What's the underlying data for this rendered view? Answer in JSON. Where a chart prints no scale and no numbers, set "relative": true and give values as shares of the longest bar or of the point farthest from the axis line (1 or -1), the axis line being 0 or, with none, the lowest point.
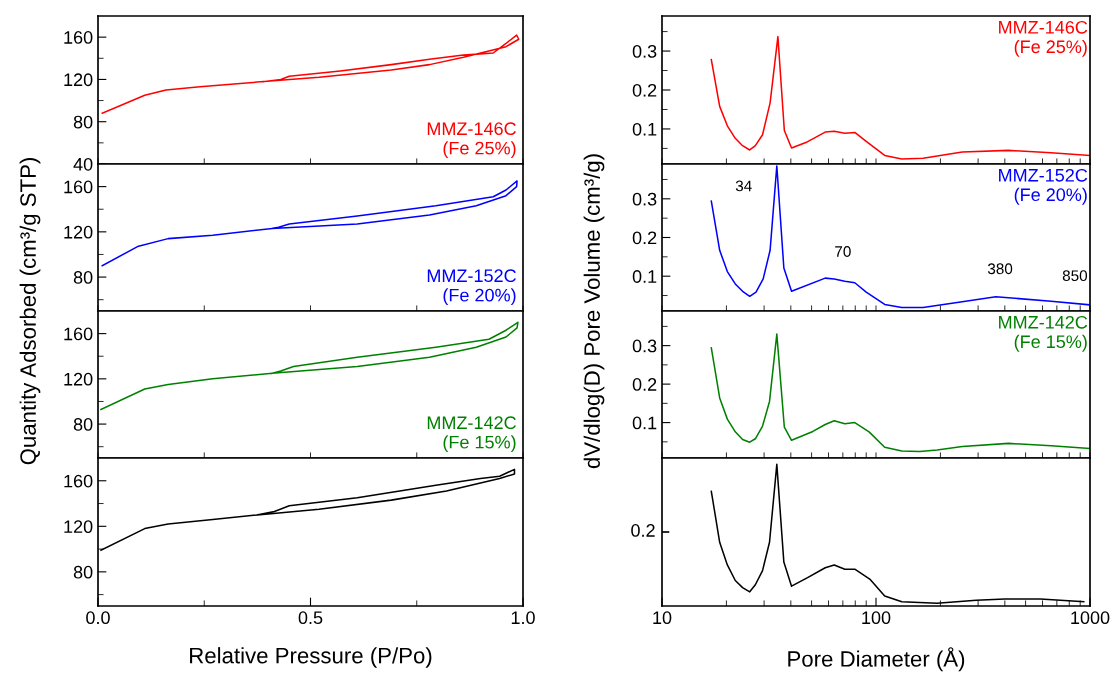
{
  "chart_data": [
    {
      "type": "line",
      "ylabel": "Quantity Adsorbed (cm³/g STP)",
      "xlim": [
        0,
        1
      ],
      "xticks": [
        {
          "value": 0,
          "label": null
        },
        {
          "value": 0.25,
          "label": null
        },
        {
          "value": 0.5,
          "label": null
        },
        {
          "value": 0.75,
          "label": null
        },
        {
          "value": 1,
          "label": null
        }
      ],
      "ylim": [
        40,
        180
      ],
      "yticks": [
        40,
        {
          "value": 60,
          "label": null
        },
        80,
        {
          "value": 100,
          "label": null
        },
        120,
        {
          "value": 140,
          "label": null
        },
        160
      ],
      "tick_labels": "y",
      "series": [
        {
          "name": "MMZ-146C\n(Fe 25%)",
          "color": "#ff0000",
          "x": [
            0.01,
            0.11,
            0.16,
            0.24,
            0.39,
            0.52,
            0.69,
            0.78,
            0.86,
            0.96,
            0.99,
            0.985,
            0.96,
            0.93,
            0.86,
            0.78,
            0.69,
            0.57,
            0.45,
            0.43,
            0.39
          ],
          "values": [
            88,
            105,
            110,
            113,
            118,
            122,
            129,
            134,
            141,
            151,
            158,
            162,
            154,
            145,
            143,
            139,
            134,
            128,
            123,
            120,
            118
          ]
        }
      ]
    },
    {
      "type": "line",
      "ylabel": "dV/dlog(D) Pore Volume (cm³/g)",
      "log": "x",
      "xlim": [
        10,
        1000
      ],
      "xticks": [
        {
          "value": 10,
          "label": null
        },
        {
          "value": 100,
          "label": null
        },
        {
          "value": 1000,
          "label": null
        }
      ],
      "ylim": [
        0.01,
        0.39
      ],
      "yticks": [
        {
          "value": 0.05,
          "label": null
        },
        0.1,
        {
          "value": 0.15,
          "label": null
        },
        0.2,
        {
          "value": 0.25,
          "label": null
        },
        0.3,
        {
          "value": 0.35,
          "label": null
        }
      ],
      "tick_labels": "y",
      "series": [
        {
          "name": "MMZ-146C\n(Fe 25%)",
          "color": "#ff0000",
          "x": [
            17.0,
            18.6,
            20.2,
            22.0,
            23.8,
            25.7,
            27.3,
            29.5,
            32.0,
            34.8,
            37.3,
            40.3,
            47.0,
            57.9,
            63.8,
            71.5,
            79.6,
            90.0,
            109.8,
            132,
            166,
            253,
            416,
            658,
            993
          ],
          "values": [
            0.278,
            0.158,
            0.108,
            0.076,
            0.057,
            0.046,
            0.057,
            0.085,
            0.167,
            0.337,
            0.096,
            0.051,
            0.065,
            0.092,
            0.094,
            0.089,
            0.091,
            0.068,
            0.032,
            0.023,
            0.025,
            0.041,
            0.045,
            0.039,
            0.032
          ]
        }
      ]
    },
    {
      "type": "line",
      "xlim": [
        0,
        1
      ],
      "xticks": [
        {
          "value": 0,
          "label": null
        },
        {
          "value": 0.25,
          "label": null
        },
        {
          "value": 0.5,
          "label": null
        },
        {
          "value": 0.75,
          "label": null
        },
        {
          "value": 1,
          "label": null
        }
      ],
      "ylim": [
        50,
        180
      ],
      "yticks": [
        {
          "value": 60,
          "label": null
        },
        80,
        {
          "value": 100,
          "label": null
        },
        120,
        {
          "value": 140,
          "label": null
        },
        160
      ],
      "tick_labels": "y",
      "series": [
        {
          "name": "MMZ-152C\n(Fe 20%)",
          "color": "#0000ff",
          "x": [
            0.01,
            0.093,
            0.165,
            0.27,
            0.41,
            0.61,
            0.78,
            0.89,
            0.96,
            0.985,
            0.986,
            0.96,
            0.93,
            0.795,
            0.61,
            0.45,
            0.425,
            0.41
          ],
          "values": [
            90,
            107,
            114,
            117,
            123,
            127,
            135,
            143,
            152,
            160,
            165,
            157,
            151,
            143,
            134,
            127,
            124,
            123
          ]
        }
      ]
    },
    {
      "type": "line",
      "log": "x",
      "xlim": [
        10,
        1000
      ],
      "xticks": [
        {
          "value": 10,
          "label": null
        },
        {
          "value": 100,
          "label": null
        },
        {
          "value": 1000,
          "label": null
        }
      ],
      "ylim": [
        0.01,
        0.39
      ],
      "yticks": [
        {
          "value": 0.05,
          "label": null
        },
        0.1,
        {
          "value": 0.15,
          "label": null
        },
        0.2,
        {
          "value": 0.25,
          "label": null
        },
        0.3,
        {
          "value": 0.35,
          "label": null
        }
      ],
      "tick_labels": "y",
      "annotations": [
        {
          "text": "34",
          "x": 34,
          "y": 0.33
        },
        {
          "text": "70",
          "x": 70,
          "y": 0.088
        },
        {
          "text": "380",
          "x": 380,
          "y": 0.046
        },
        {
          "text": "850",
          "x": 850,
          "y": 0.036
        }
      ],
      "series": [
        {
          "name": "MMZ-152C\n(Fe 20%)",
          "color": "#0000ff",
          "x": [
            17.0,
            18.6,
            20.2,
            22.0,
            23.8,
            25.7,
            27.5,
            29.7,
            32.0,
            34.4,
            37.1,
            40.3,
            57.9,
            63.8,
            71.5,
            79.6,
            90.0,
            109.8,
            132,
            166,
            253,
            363,
            658,
            993
          ],
          "values": [
            0.294,
            0.167,
            0.112,
            0.08,
            0.061,
            0.048,
            0.059,
            0.093,
            0.167,
            0.385,
            0.121,
            0.061,
            0.095,
            0.093,
            0.087,
            0.083,
            0.059,
            0.027,
            0.019,
            0.019,
            0.034,
            0.047,
            0.035,
            0.026
          ]
        }
      ]
    },
    {
      "type": "line",
      "xlim": [
        0,
        1
      ],
      "xticks": [
        {
          "value": 0,
          "label": null
        },
        {
          "value": 0.25,
          "label": null
        },
        {
          "value": 0.5,
          "label": null
        },
        {
          "value": 0.75,
          "label": null
        },
        {
          "value": 1,
          "label": null
        }
      ],
      "ylim": [
        50,
        180
      ],
      "yticks": [
        {
          "value": 60,
          "label": null
        },
        80,
        {
          "value": 100,
          "label": null
        },
        120,
        {
          "value": 140,
          "label": null
        },
        160
      ],
      "tick_labels": "y",
      "series": [
        {
          "name": "MMZ-142C\n(Fe 15%)",
          "color": "#008000",
          "x": [
            0.007,
            0.11,
            0.165,
            0.27,
            0.41,
            0.61,
            0.78,
            0.89,
            0.96,
            0.986,
            0.988,
            0.96,
            0.92,
            0.795,
            0.61,
            0.46,
            0.43,
            0.41
          ],
          "values": [
            93,
            111,
            115,
            120,
            125,
            131,
            139,
            148,
            157,
            165,
            170,
            163,
            155,
            148,
            139,
            131,
            127,
            125
          ]
        }
      ]
    },
    {
      "type": "line",
      "log": "x",
      "xlim": [
        10,
        1000
      ],
      "xticks": [
        {
          "value": 10,
          "label": null
        },
        {
          "value": 100,
          "label": null
        },
        {
          "value": 1000,
          "label": null
        }
      ],
      "ylim": [
        0.008,
        0.39
      ],
      "yticks": [
        {
          "value": 0.05,
          "label": null
        },
        0.1,
        {
          "value": 0.15,
          "label": null
        },
        0.2,
        {
          "value": 0.25,
          "label": null
        },
        0.3,
        {
          "value": 0.35,
          "label": null
        }
      ],
      "tick_labels": "y",
      "series": [
        {
          "name": "MMZ-142C\n(Fe 15%)",
          "color": "#008000",
          "x": [
            17.0,
            18.6,
            20.2,
            22.0,
            23.8,
            25.7,
            27.3,
            29.5,
            31.8,
            34.4,
            37.3,
            40.3,
            50.7,
            57.9,
            63.8,
            71.5,
            79.6,
            92.8,
            109.8,
            132,
            160,
            193,
            253,
            416,
            658,
            993
          ],
          "values": [
            0.294,
            0.164,
            0.109,
            0.076,
            0.056,
            0.049,
            0.058,
            0.091,
            0.155,
            0.33,
            0.088,
            0.054,
            0.077,
            0.095,
            0.105,
            0.097,
            0.1,
            0.076,
            0.036,
            0.026,
            0.025,
            0.029,
            0.038,
            0.046,
            0.04,
            0.033
          ]
        }
      ]
    },
    {
      "type": "line",
      "xlabel": "Relative Pressure (P/Po)",
      "xlim": [
        0,
        1
      ],
      "xticks": [
        {
          "value": 0,
          "label": "0.0"
        },
        {
          "value": 0.25,
          "label": null
        },
        0.5,
        {
          "value": 0.75,
          "label": null
        },
        {
          "value": 1,
          "label": "1.0"
        }
      ],
      "ylim": [
        50,
        180
      ],
      "yticks": [
        {
          "value": 60,
          "label": null
        },
        80,
        {
          "value": 100,
          "label": null
        },
        120,
        {
          "value": 140,
          "label": null
        },
        160
      ],
      "series": [
        {
          "color": "#000000",
          "x": [
            0.007,
            0.11,
            0.165,
            0.27,
            0.375,
            0.52,
            0.69,
            0.82,
            0.945,
            0.98,
            0.98,
            0.945,
            0.9,
            0.795,
            0.61,
            0.45,
            0.415,
            0.375
          ],
          "values": [
            99,
            118,
            122,
            126,
            130,
            135,
            143,
            151,
            162,
            166,
            170,
            164,
            162,
            156,
            145,
            138,
            133,
            130
          ]
        }
      ]
    },
    {
      "type": "line",
      "xlabel": "Pore Diameter (Å)",
      "log": "x",
      "xlim": [
        10,
        1000
      ],
      "xticks": [
        10,
        100,
        1000
      ],
      "relative": true,
      "annotations": [
        "0.2"
      ],
      "series": [
        {
          "color": "#000000",
          "x": [
            17.0,
            18.6,
            20.2,
            22.0,
            23.8,
            25.7,
            27.3,
            29.5,
            31.8,
            34.4,
            37.1,
            40.3,
            47.9,
            57.9,
            63.8,
            71.5,
            79.6,
            93.5,
            109.8,
            132,
            193,
            294,
            400,
            586,
            935
          ],
          "values": [
            0.81,
            0.45,
            0.29,
            0.18,
            0.13,
            0.1,
            0.15,
            0.25,
            0.45,
            1,
            0.31,
            0.14,
            0.2,
            0.27,
            0.29,
            0.26,
            0.26,
            0.19,
            0.07,
            0.03,
            0.02,
            0.04,
            0.05,
            0.05,
            0.03
          ]
        }
      ]
    }
  ]
}
